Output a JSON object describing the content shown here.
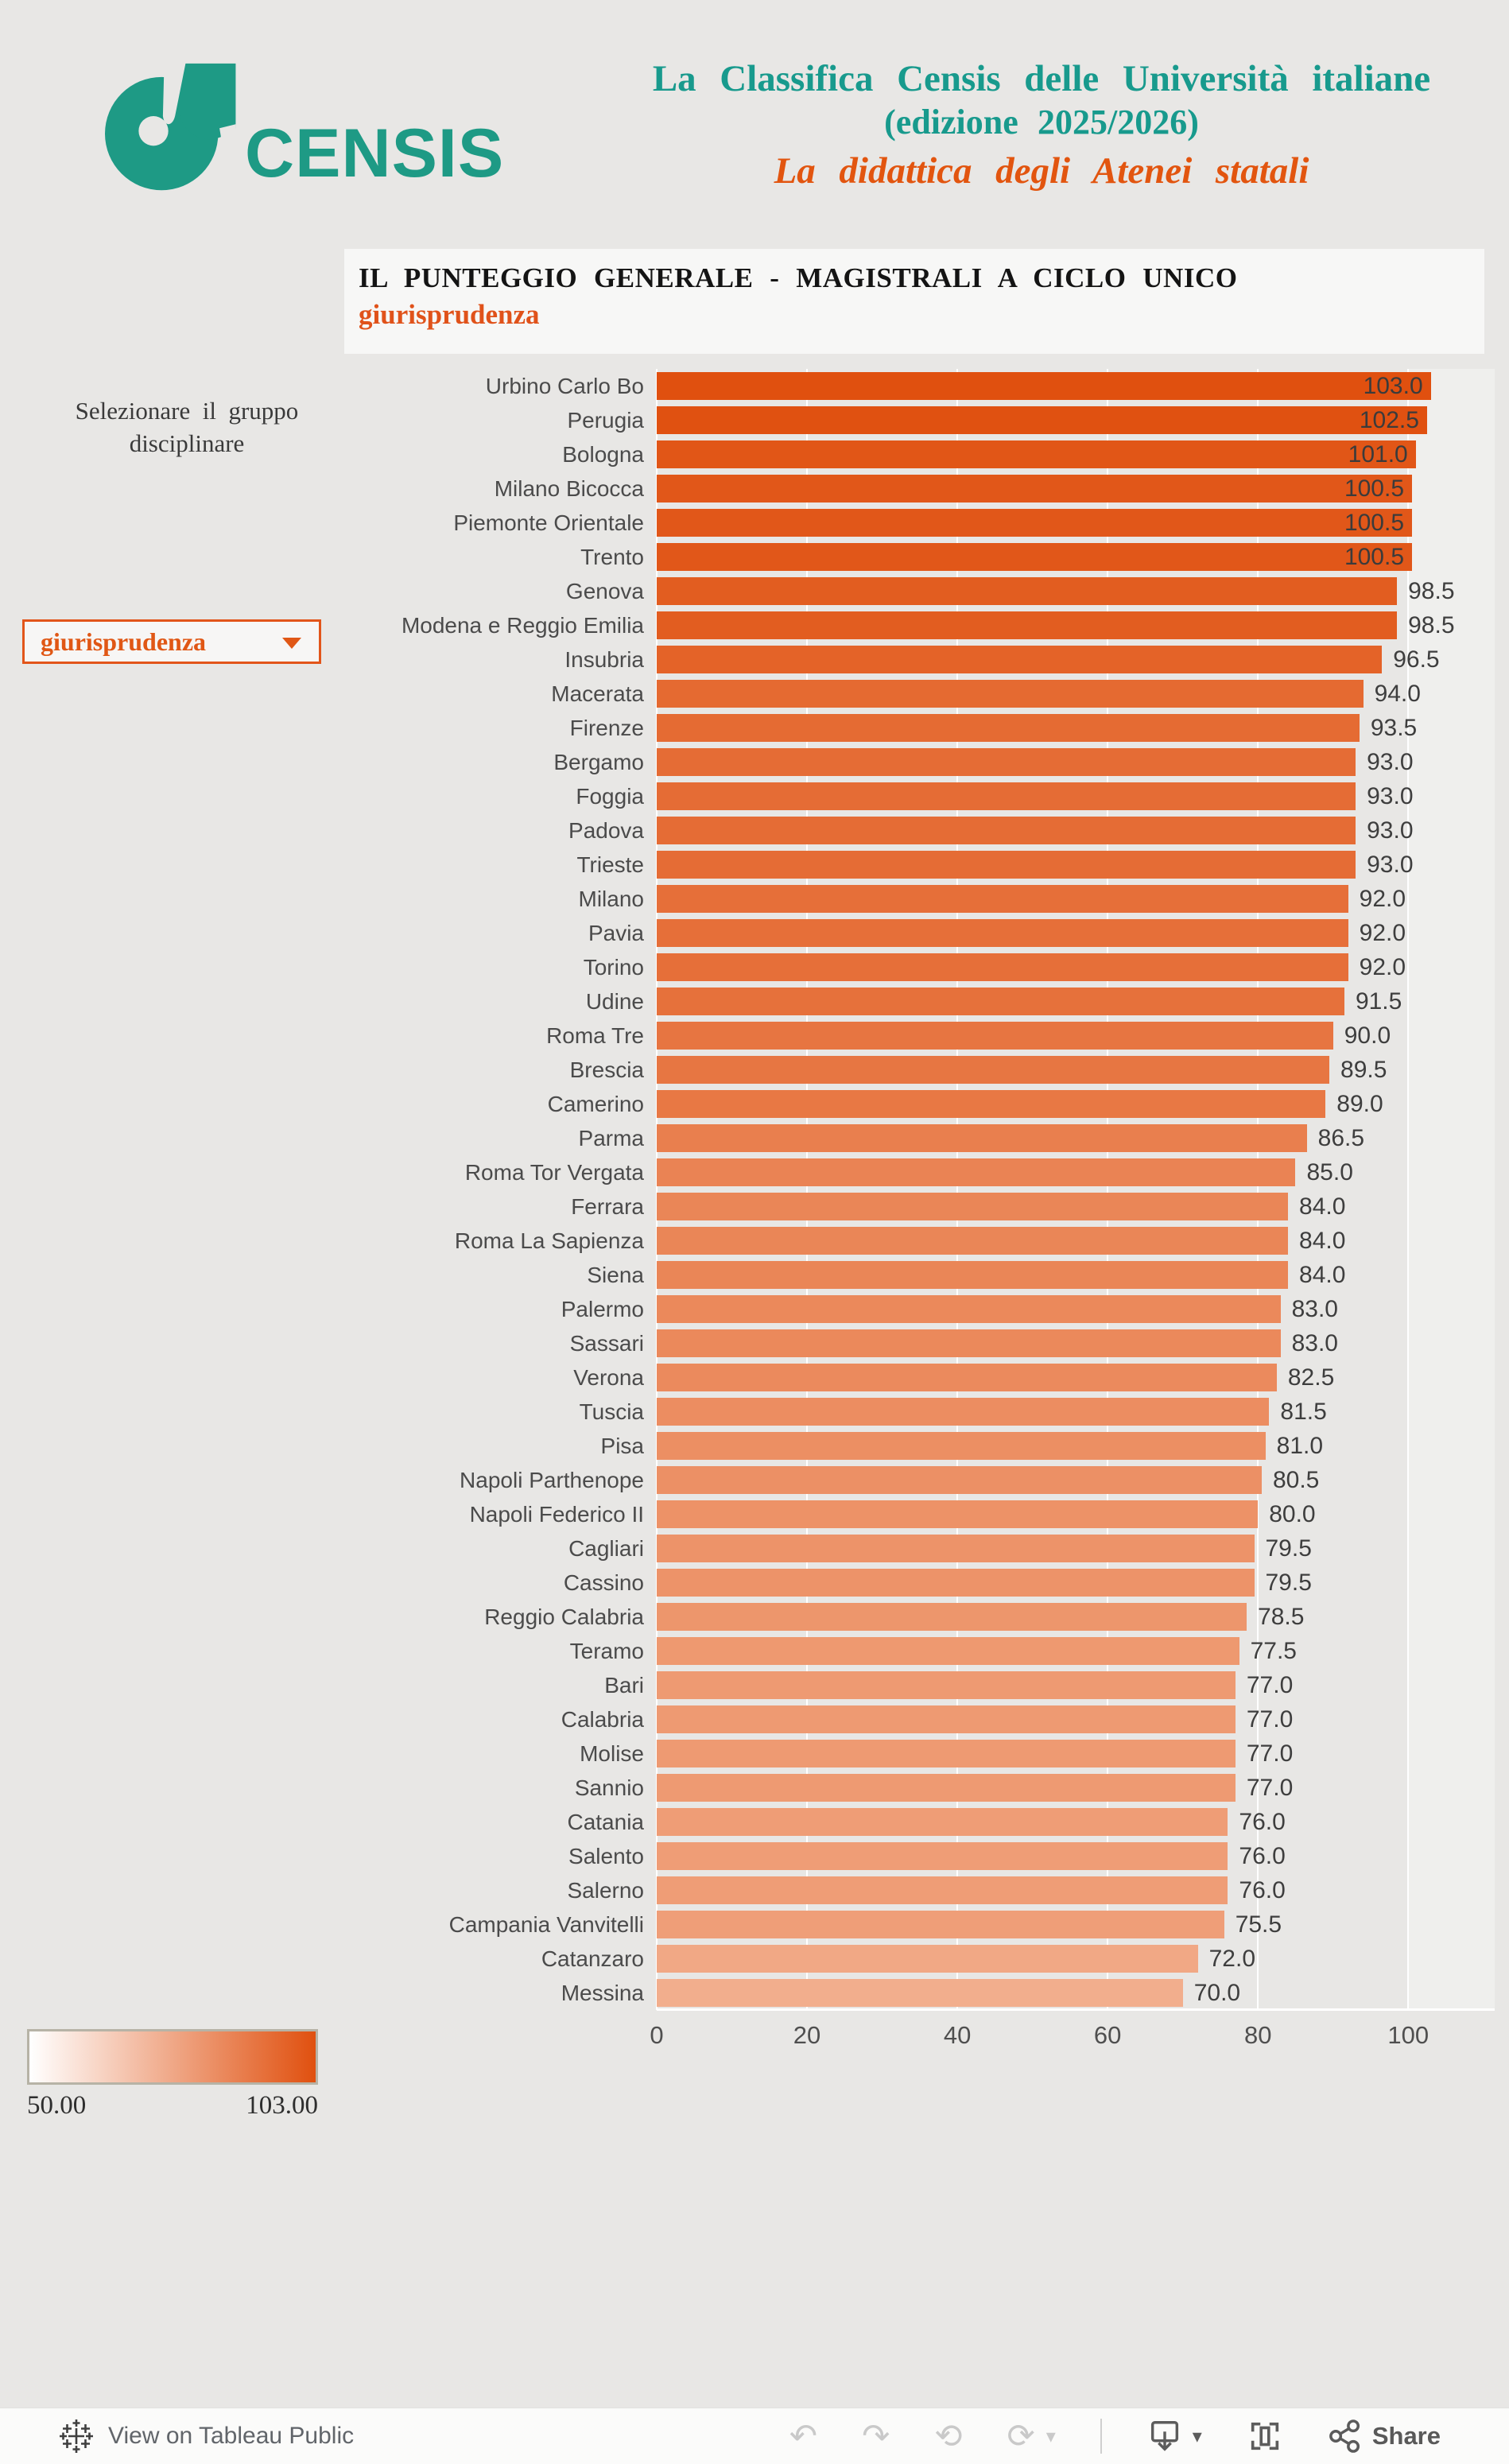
{
  "brand": {
    "name": "CENSIS",
    "color": "#1e9a85"
  },
  "title": {
    "line1": "La Classifica Censis delle Università italiane",
    "line2": "(edizione 2025/2026)",
    "line3": "La didattica degli Atenei statali",
    "main_color": "#189a8d",
    "sub_color": "#e2550f"
  },
  "panel": {
    "heading": "IL PUNTEGGIO GENERALE - MAGISTRALI A CICLO UNICO",
    "subheading": "giurisprudenza"
  },
  "sidebar": {
    "filter_label": "Selezionare il gruppo disciplinare",
    "dropdown_value": "giurisprudenza",
    "accent_color": "#e05715"
  },
  "chart_data": {
    "type": "bar",
    "orientation": "horizontal",
    "title": "IL PUNTEGGIO GENERALE - MAGISTRALI A CICLO UNICO (giurisprudenza)",
    "categories": [
      "Urbino Carlo Bo",
      "Perugia",
      "Bologna",
      "Milano Bicocca",
      "Piemonte Orientale",
      "Trento",
      "Genova",
      "Modena e Reggio Emilia",
      "Insubria",
      "Macerata",
      "Firenze",
      "Bergamo",
      "Foggia",
      "Padova",
      "Trieste",
      "Milano",
      "Pavia",
      "Torino",
      "Udine",
      "Roma Tre",
      "Brescia",
      "Camerino",
      "Parma",
      "Roma Tor Vergata",
      "Ferrara",
      "Roma La Sapienza",
      "Siena",
      "Palermo",
      "Sassari",
      "Verona",
      "Tuscia",
      "Pisa",
      "Napoli Parthenope",
      "Napoli Federico II",
      "Cagliari",
      "Cassino",
      "Reggio Calabria",
      "Teramo",
      "Bari",
      "Calabria",
      "Molise",
      "Sannio",
      "Catania",
      "Salento",
      "Salerno",
      "Campania Vanvitelli",
      "Catanzaro",
      "Messina"
    ],
    "values": [
      103.0,
      102.5,
      101.0,
      100.5,
      100.5,
      100.5,
      98.5,
      98.5,
      96.5,
      94.0,
      93.5,
      93.0,
      93.0,
      93.0,
      93.0,
      92.0,
      92.0,
      92.0,
      91.5,
      90.0,
      89.5,
      89.0,
      86.5,
      85.0,
      84.0,
      84.0,
      84.0,
      83.0,
      83.0,
      82.5,
      81.5,
      81.0,
      80.5,
      80.0,
      79.5,
      79.5,
      78.5,
      77.5,
      77.0,
      77.0,
      77.0,
      77.0,
      76.0,
      76.0,
      76.0,
      75.5,
      72.0,
      70.0
    ],
    "x_ticks": [
      0,
      20,
      40,
      60,
      80,
      100
    ],
    "xlim": [
      0,
      111.5
    ],
    "grid": "on",
    "legend_position": "bottom-left",
    "color_scale": {
      "min": 50,
      "max": 103,
      "start_color": "#fde7d9",
      "end_color": "#e0500f"
    },
    "value_label_decimals": 1,
    "inside_label_min": 100
  },
  "legend": {
    "min_label": "50.00",
    "max_label": "103.00"
  },
  "footer": {
    "view_text": "View on Tableau Public",
    "share_label": "Share",
    "undo_glyph": "↶",
    "redo_glyph": "↷",
    "revert_glyph": "⟲",
    "refresh_glyph": "⟳",
    "caret_glyph": "▾"
  }
}
